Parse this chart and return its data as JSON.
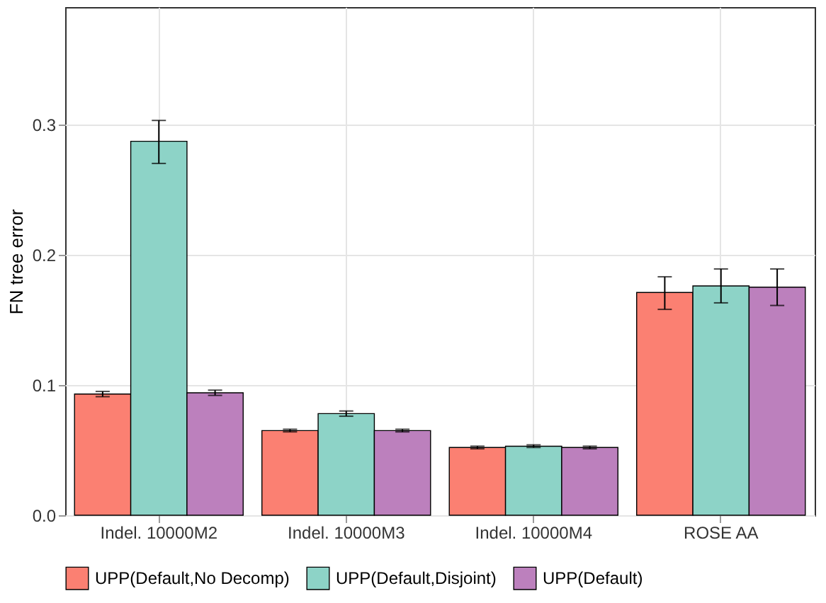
{
  "chart_data": {
    "type": "bar",
    "ylabel": "FN tree error",
    "categories": [
      "Indel. 10000M2",
      "Indel. 10000M3",
      "Indel. 10000M4",
      "ROSE AA"
    ],
    "series": [
      {
        "name": "UPP(Default,No Decomp)",
        "color": "#fb8072",
        "values": [
          0.093,
          0.065,
          0.052,
          0.171
        ],
        "errors": [
          0.002,
          0.001,
          0.001,
          [
            0.158,
            0.183
          ]
        ]
      },
      {
        "name": "UPP(Default,Disjoint)",
        "color": "#8dd3c7",
        "values": [
          0.287,
          0.078,
          0.053,
          0.176
        ],
        "errors": [
          [
            0.27,
            0.303
          ],
          0.002,
          0.001,
          [
            0.163,
            0.189
          ]
        ]
      },
      {
        "name": "UPP(Default)",
        "color": "#bc80bd",
        "values": [
          0.094,
          0.065,
          0.052,
          0.175
        ],
        "errors": [
          0.002,
          0.001,
          0.001,
          [
            0.161,
            0.189
          ]
        ]
      }
    ],
    "ylim": [
      0,
      0.39
    ],
    "yticks": [
      {
        "value": 0,
        "label": "0.0"
      },
      0.1,
      0.2,
      0.3
    ],
    "grid": true,
    "legend": "bottom"
  }
}
